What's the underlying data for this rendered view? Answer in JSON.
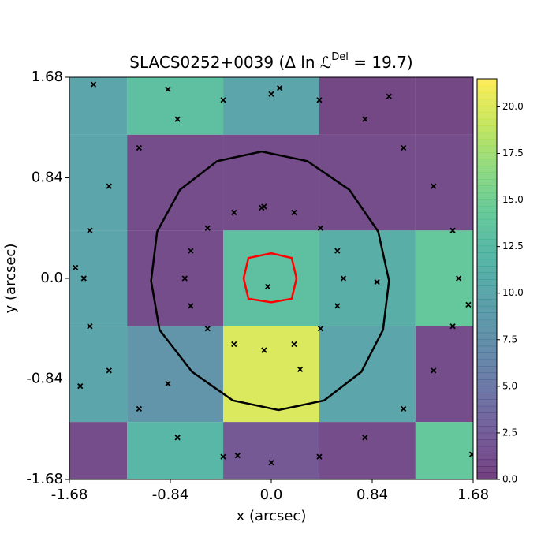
{
  "chart_data": {
    "type": "heatmap",
    "title": [
      "SLACS0252+0039 (Δ ln ℒ",
      "Del",
      " =  19.7)"
    ],
    "xlabel": "x (arcsec)",
    "ylabel": "y (arcsec)",
    "xlim": [
      -1.68,
      1.68
    ],
    "ylim": [
      -1.68,
      1.68
    ],
    "xticks": [
      -1.68,
      -0.84,
      {
        "value": 0,
        "label": "0.0"
      },
      0.84,
      1.68
    ],
    "yticks": [
      -1.68,
      -0.84,
      {
        "value": 0,
        "label": "0.0"
      },
      0.84,
      1.68
    ],
    "x_edges": [
      -1.68,
      -1.2,
      -0.4,
      0.4,
      1.2,
      1.68
    ],
    "y_edges": [
      1.68,
      1.2,
      0.4,
      -0.4,
      -1.2,
      -1.68
    ],
    "values": [
      [
        10,
        13,
        10,
        0.5,
        0.5
      ],
      [
        10,
        1,
        1,
        1,
        1
      ],
      [
        10,
        1,
        13,
        11,
        14
      ],
      [
        10,
        8,
        20,
        10,
        1
      ],
      [
        1,
        12,
        2,
        1,
        14
      ]
    ],
    "colormap": "viridis",
    "alpha": 0.75,
    "clim": [
      0,
      21.5
    ],
    "cticks": [
      {
        "value": 0,
        "label": "0.0"
      },
      2.5,
      {
        "value": 5,
        "label": "5.0"
      },
      7.5,
      {
        "value": 10,
        "label": "10.0"
      },
      12.5,
      {
        "value": 15,
        "label": "15.0"
      },
      17.5,
      {
        "value": 20,
        "label": "20.0"
      }
    ],
    "points": {
      "color": "#000000",
      "x": [
        1.56,
        1.51,
        1.35,
        1.1,
        0.78,
        0.4,
        0,
        -0.4,
        -0.78,
        -1.1,
        -1.35,
        -1.51,
        -1.56,
        -1.51,
        -1.35,
        -1.1,
        -0.78,
        -0.4,
        0,
        0.4,
        0.78,
        1.1,
        1.35,
        1.51,
        0.6,
        0.55,
        0.41,
        0.19,
        -0.06,
        -0.31,
        -0.53,
        -0.67,
        -0.72,
        -0.67,
        -0.53,
        -0.31,
        -0.06,
        0.19,
        0.41,
        0.55,
        -1.48,
        -0.86,
        0.07,
        0.98,
        -1.63,
        0.88,
        1.64,
        -1.59,
        -0.86,
        0.24,
        -0.03,
        -0.08,
        1.67,
        -0.28
      ],
      "y": [
        0,
        0.4,
        0.77,
        1.09,
        1.33,
        1.49,
        1.54,
        1.49,
        1.33,
        1.09,
        0.77,
        0.4,
        0,
        -0.4,
        -0.77,
        -1.09,
        -1.33,
        -1.49,
        -1.54,
        -1.49,
        -1.33,
        -1.09,
        -0.77,
        -0.4,
        0,
        0.23,
        0.42,
        0.55,
        0.6,
        0.55,
        0.42,
        0.23,
        0,
        -0.23,
        -0.42,
        -0.55,
        -0.6,
        -0.55,
        -0.42,
        -0.23,
        1.62,
        1.58,
        1.59,
        1.52,
        0.09,
        -0.03,
        -0.22,
        -0.9,
        -0.88,
        -0.76,
        -0.07,
        0.59,
        -1.47,
        -1.48
      ]
    },
    "curves": [
      {
        "color": "#000000",
        "x": [
          0.98,
          0.89,
          0.65,
          0.3,
          -0.08,
          -0.45,
          -0.76,
          -0.95,
          -1.0,
          -0.93,
          -0.66,
          -0.32,
          0.06,
          0.44,
          0.75,
          0.93
        ],
        "y": [
          -0.02,
          0.39,
          0.74,
          0.98,
          1.06,
          0.98,
          0.74,
          0.39,
          -0.02,
          -0.43,
          -0.78,
          -1.02,
          -1.1,
          -1.02,
          -0.78,
          -0.43
        ]
      },
      {
        "color": "#ff0000",
        "x": [
          0.21,
          0.17,
          0,
          -0.19,
          -0.23,
          -0.19,
          0,
          0.17
        ],
        "y": [
          0,
          0.17,
          0.21,
          0.17,
          0,
          -0.17,
          -0.2,
          -0.17
        ]
      }
    ]
  }
}
